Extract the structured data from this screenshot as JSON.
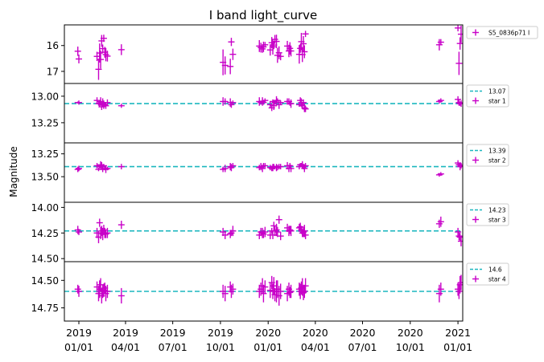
{
  "chart_data": {
    "type": "scatter",
    "title": "I band light_curve",
    "ylabel": "Magnitude",
    "x_axis": {
      "type": "date",
      "ticks": [
        "2019-01-01",
        "2019-04-01",
        "2019-07-01",
        "2019-10-01",
        "2020-01-01",
        "2020-04-01",
        "2020-07-01",
        "2020-10-01",
        "2021-01-01"
      ],
      "tick_labels": [
        [
          "2019",
          "01/01"
        ],
        [
          "2019",
          "04/01"
        ],
        [
          "2019",
          "07/01"
        ],
        [
          "2019",
          "10/01"
        ],
        [
          "2020",
          "01/01"
        ],
        [
          "2020",
          "04/01"
        ],
        [
          "2020",
          "07/01"
        ],
        [
          "2020",
          "10/01"
        ],
        [
          "2021",
          "01/01"
        ]
      ]
    },
    "dates": [
      "2018-12-30",
      "2019-01-01",
      "2019-02-05",
      "2019-02-08",
      "2019-02-10",
      "2019-02-12",
      "2019-02-14",
      "2019-02-16",
      "2019-02-18",
      "2019-02-20",
      "2019-02-22",
      "2019-02-25",
      "2019-03-24",
      "2019-10-06",
      "2019-10-10",
      "2019-10-20",
      "2019-10-22",
      "2019-10-25",
      "2019-12-15",
      "2019-12-18",
      "2019-12-21",
      "2019-12-23",
      "2019-12-26",
      "2020-01-05",
      "2020-01-08",
      "2020-01-10",
      "2020-01-12",
      "2020-01-14",
      "2020-01-17",
      "2020-01-19",
      "2020-01-22",
      "2020-01-25",
      "2020-02-07",
      "2020-02-10",
      "2020-02-12",
      "2020-02-14",
      "2020-03-01",
      "2020-03-03",
      "2020-03-05",
      "2020-03-07",
      "2020-03-09",
      "2020-03-11",
      "2020-03-13",
      "2020-11-26",
      "2020-11-29",
      "2021-01-01",
      "2021-01-03",
      "2021-01-05",
      "2021-01-07"
    ],
    "panels": [
      {
        "legend": [
          {
            "label": "S5_0836p71 I",
            "kind": "errorbar"
          }
        ],
        "ylim": [
          17.5,
          15.2
        ],
        "yticks": [
          16,
          17
        ],
        "yticklabels": [
          "16",
          "17"
        ],
        "values": [
          16.22,
          16.52,
          16.42,
          16.92,
          16.29,
          16.54,
          15.82,
          16.12,
          15.72,
          16.26,
          16.35,
          16.41,
          16.16,
          16.65,
          16.77,
          16.81,
          15.86,
          16.34,
          16.02,
          16.08,
          16.13,
          16.05,
          15.97,
          16.17,
          15.89,
          16.05,
          15.98,
          15.76,
          15.84,
          16.38,
          16.28,
          16.42,
          16.02,
          16.21,
          16.11,
          16.21,
          16.34,
          16.11,
          15.85,
          16.35,
          15.93,
          16.24,
          15.55,
          15.97,
          15.87,
          15.32,
          16.69,
          15.92,
          15.56
        ],
        "errors": [
          0.18,
          0.17,
          0.18,
          0.41,
          0.37,
          0.35,
          0.23,
          0.16,
          0.14,
          0.21,
          0.26,
          0.21,
          0.21,
          0.5,
          0.35,
          0.3,
          0.16,
          0.22,
          0.23,
          0.19,
          0.15,
          0.2,
          0.11,
          0.22,
          0.22,
          0.3,
          0.16,
          0.17,
          0.26,
          0.29,
          0.25,
          0.15,
          0.2,
          0.24,
          0.24,
          0.21,
          0.36,
          0.17,
          0.34,
          0.29,
          0.3,
          0.25,
          0.12,
          0.22,
          0.12,
          0.13,
          0.45,
          0.24,
          0.33
        ]
      },
      {
        "legend": [
          {
            "label": "13.07",
            "kind": "dashed-line"
          },
          {
            "label": "star 1",
            "kind": "errorbar"
          }
        ],
        "ylim": [
          13.44,
          12.88
        ],
        "yticks": [
          13.0,
          13.25
        ],
        "yticklabels": [
          "13.00",
          "13.25"
        ],
        "reference": 13.07,
        "values": [
          13.06,
          13.06,
          13.04,
          13.07,
          13.07,
          13.05,
          13.1,
          13.06,
          13.08,
          13.08,
          13.09,
          13.06,
          13.09,
          13.05,
          13.05,
          13.06,
          13.08,
          13.06,
          13.05,
          13.06,
          13.05,
          13.06,
          13.04,
          13.08,
          13.11,
          13.05,
          13.09,
          13.06,
          13.04,
          13.04,
          13.08,
          13.06,
          13.05,
          13.05,
          13.07,
          13.07,
          13.08,
          13.04,
          13.06,
          13.09,
          13.06,
          13.11,
          13.12,
          13.05,
          13.04,
          13.03,
          13.06,
          13.07,
          13.07
        ],
        "errors": [
          0.01,
          0.02,
          0.03,
          0.02,
          0.03,
          0.04,
          0.03,
          0.04,
          0.04,
          0.02,
          0.03,
          0.03,
          0.02,
          0.04,
          0.03,
          0.04,
          0.03,
          0.02,
          0.04,
          0.02,
          0.04,
          0.02,
          0.02,
          0.03,
          0.03,
          0.02,
          0.04,
          0.02,
          0.04,
          0.02,
          0.04,
          0.02,
          0.03,
          0.03,
          0.02,
          0.04,
          0.02,
          0.03,
          0.04,
          0.03,
          0.03,
          0.04,
          0.03,
          0.02,
          0.02,
          0.03,
          0.03,
          0.02,
          0.03
        ]
      },
      {
        "legend": [
          {
            "label": "13.39",
            "kind": "dashed-line"
          },
          {
            "label": "star 2",
            "kind": "errorbar"
          }
        ],
        "ylim": [
          13.78,
          13.13
        ],
        "yticks": [
          13.25,
          13.5
        ],
        "yticklabels": [
          "13.25",
          "13.50"
        ],
        "reference": 13.39,
        "values": [
          13.42,
          13.41,
          13.38,
          13.42,
          13.39,
          13.37,
          13.38,
          13.42,
          13.38,
          13.41,
          13.42,
          13.41,
          13.39,
          13.42,
          13.41,
          13.39,
          13.4,
          13.38,
          13.4,
          13.39,
          13.41,
          13.38,
          13.38,
          13.4,
          13.41,
          13.4,
          13.39,
          13.4,
          13.4,
          13.4,
          13.39,
          13.39,
          13.38,
          13.41,
          13.38,
          13.41,
          13.39,
          13.37,
          13.37,
          13.37,
          13.39,
          13.41,
          13.38,
          13.48,
          13.47,
          13.35,
          13.37,
          13.39,
          13.38
        ],
        "errors": [
          0.03,
          0.03,
          0.03,
          0.02,
          0.02,
          0.04,
          0.04,
          0.03,
          0.02,
          0.02,
          0.04,
          0.02,
          0.03,
          0.03,
          0.04,
          0.04,
          0.04,
          0.03,
          0.03,
          0.04,
          0.04,
          0.03,
          0.03,
          0.03,
          0.03,
          0.04,
          0.03,
          0.02,
          0.04,
          0.03,
          0.03,
          0.03,
          0.04,
          0.04,
          0.03,
          0.04,
          0.03,
          0.02,
          0.02,
          0.04,
          0.03,
          0.04,
          0.03,
          0.02,
          0.02,
          0.03,
          0.02,
          0.04,
          0.03
        ]
      },
      {
        "legend": [
          {
            "label": "14.23",
            "kind": "dashed-line"
          },
          {
            "label": "star 3",
            "kind": "errorbar"
          }
        ],
        "ylim": [
          14.53,
          13.95
        ],
        "yticks": [
          14.0,
          14.25,
          14.5
        ],
        "yticklabels": [
          "14.00",
          "14.25",
          "14.50"
        ],
        "reference": 14.23,
        "values": [
          14.22,
          14.24,
          14.25,
          14.29,
          14.15,
          14.25,
          14.23,
          14.26,
          14.22,
          14.25,
          14.26,
          14.25,
          14.17,
          14.24,
          14.27,
          14.26,
          14.25,
          14.23,
          14.27,
          14.24,
          14.25,
          14.26,
          14.24,
          14.27,
          14.23,
          14.27,
          14.18,
          14.23,
          14.22,
          14.24,
          14.12,
          14.28,
          14.2,
          14.23,
          14.22,
          14.23,
          14.2,
          14.19,
          14.22,
          14.25,
          14.24,
          14.23,
          14.27,
          14.16,
          14.14,
          14.24,
          14.28,
          14.29,
          14.33
        ],
        "errors": [
          0.04,
          0.03,
          0.05,
          0.06,
          0.04,
          0.06,
          0.05,
          0.06,
          0.05,
          0.05,
          0.04,
          0.05,
          0.04,
          0.04,
          0.04,
          0.04,
          0.03,
          0.05,
          0.04,
          0.04,
          0.05,
          0.04,
          0.05,
          0.04,
          0.03,
          0.04,
          0.04,
          0.05,
          0.06,
          0.05,
          0.04,
          0.04,
          0.04,
          0.05,
          0.04,
          0.05,
          0.04,
          0.04,
          0.04,
          0.04,
          0.05,
          0.06,
          0.04,
          0.04,
          0.05,
          0.04,
          0.04,
          0.04,
          0.05
        ]
      },
      {
        "legend": [
          {
            "label": "14.6",
            "kind": "dashed-line"
          },
          {
            "label": "star 4",
            "kind": "errorbar"
          }
        ],
        "ylim": [
          14.87,
          14.33
        ],
        "yticks": [
          14.5,
          14.75
        ],
        "yticklabels": [
          "14.50",
          "14.75"
        ],
        "reference": 14.6,
        "values": [
          14.58,
          14.6,
          14.56,
          14.62,
          14.58,
          14.54,
          14.64,
          14.6,
          14.59,
          14.57,
          14.62,
          14.6,
          14.64,
          14.6,
          14.62,
          14.56,
          14.6,
          14.58,
          14.6,
          14.58,
          14.55,
          14.62,
          14.56,
          14.59,
          14.52,
          14.6,
          14.55,
          14.63,
          14.6,
          14.58,
          14.64,
          14.6,
          14.62,
          14.58,
          14.61,
          14.6,
          14.58,
          14.6,
          14.57,
          14.56,
          14.61,
          14.6,
          14.55,
          14.62,
          14.58,
          14.58,
          14.6,
          14.54,
          14.52
        ],
        "errors": [
          0.04,
          0.05,
          0.05,
          0.07,
          0.08,
          0.06,
          0.07,
          0.06,
          0.06,
          0.05,
          0.07,
          0.06,
          0.07,
          0.06,
          0.07,
          0.05,
          0.06,
          0.05,
          0.06,
          0.06,
          0.07,
          0.08,
          0.06,
          0.07,
          0.06,
          0.07,
          0.08,
          0.06,
          0.1,
          0.08,
          0.09,
          0.07,
          0.07,
          0.06,
          0.05,
          0.06,
          0.06,
          0.07,
          0.06,
          0.08,
          0.07,
          0.06,
          0.07,
          0.08,
          0.06,
          0.06,
          0.07,
          0.08,
          0.07
        ]
      }
    ],
    "colors": {
      "data": "#c800c8",
      "reference": "#1cb7bf",
      "frame": "#000000",
      "legend_border": "#cccccc"
    },
    "grid": false,
    "legend_placement": "outside right of each panel, top"
  }
}
